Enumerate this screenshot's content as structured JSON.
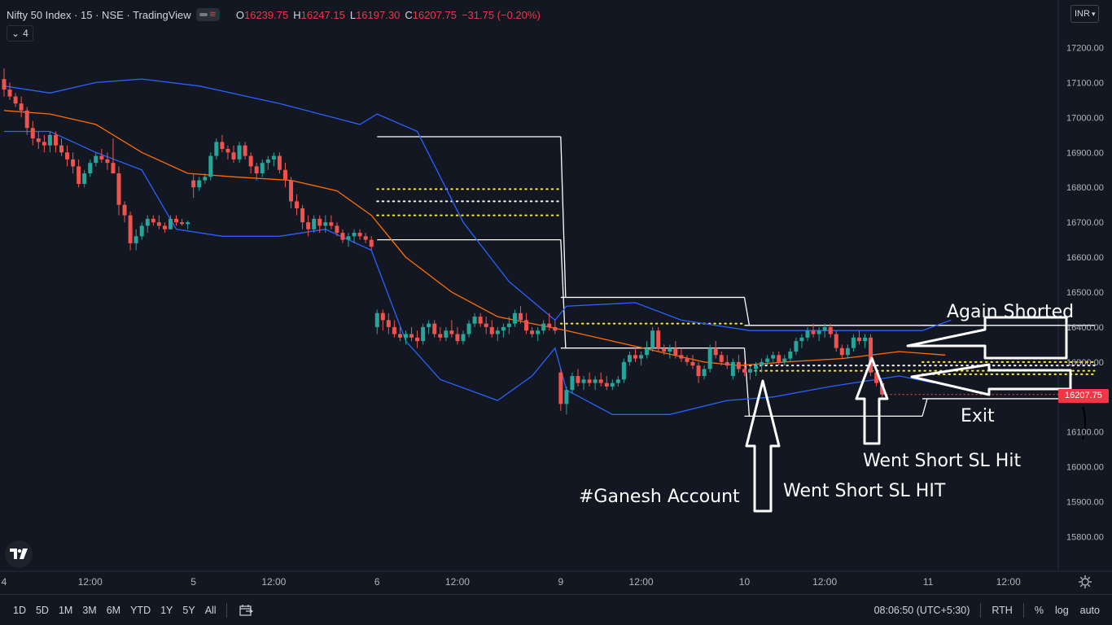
{
  "legend": {
    "title": "Nifty 50 Index · 15 · NSE · TradingView",
    "ohlc": {
      "o_label": "O",
      "o": "16239.75",
      "h_label": "H",
      "h": "16247.15",
      "l_label": "L",
      "l": "16197.30",
      "c_label": "C",
      "c": "16207.75",
      "change": "−31.75 (−0.20%)"
    },
    "collapse_count": "4"
  },
  "currency": "INR",
  "last_price": "16207.75",
  "toolbar": {
    "ranges": [
      "1D",
      "5D",
      "1M",
      "3M",
      "6M",
      "YTD",
      "1Y",
      "5Y",
      "All"
    ],
    "time": "08:06:50 (UTC+5:30)",
    "session": "RTH",
    "percent": "%",
    "log": "log",
    "auto": "auto"
  },
  "colors": {
    "background": "#131722",
    "up": "#26a69a",
    "down": "#ef5350",
    "bollinger": "#2962ff",
    "basis": "#ff6d00",
    "cpr_lines": "#ffffff",
    "pivot_dots_yellow": "#ffeb3b",
    "pivot_dots_white": "#ffffff",
    "annotation": "#ffffff"
  },
  "chart_data": {
    "type": "candlestick",
    "title": "Nifty 50 Index · 15 · NSE · TradingView",
    "y_axis": {
      "ticks": [
        "17200.00",
        "17100.00",
        "17000.00",
        "16900.00",
        "16800.00",
        "16700.00",
        "16600.00",
        "16500.00",
        "16400.00",
        "16300.00",
        "16200.00",
        "16100.00",
        "16000.00",
        "15900.00",
        "15800.00"
      ],
      "range": [
        15690,
        17340
      ]
    },
    "x_axis": {
      "ticks": [
        {
          "label": "4",
          "index": 0
        },
        {
          "label": "12:00",
          "index": 15
        },
        {
          "label": "5",
          "index": 33
        },
        {
          "label": "12:00",
          "index": 47
        },
        {
          "label": "6",
          "index": 65
        },
        {
          "label": "12:00",
          "index": 79
        },
        {
          "label": "9",
          "index": 97
        },
        {
          "label": "12:00",
          "index": 111
        },
        {
          "label": "10",
          "index": 129
        },
        {
          "label": "12:00",
          "index": 143
        },
        {
          "label": "11",
          "index": 161
        },
        {
          "label": "12:00",
          "index": 175
        }
      ]
    },
    "ohlc": [
      [
        17110,
        17140,
        17060,
        17080
      ],
      [
        17080,
        17100,
        17050,
        17060
      ],
      [
        17060,
        17070,
        17030,
        17040
      ],
      [
        17040,
        17060,
        17000,
        17020
      ],
      [
        17020,
        17030,
        16950,
        16970
      ],
      [
        16970,
        16990,
        16920,
        16940
      ],
      [
        16940,
        16960,
        16910,
        16930
      ],
      [
        16930,
        16950,
        16900,
        16920
      ],
      [
        16920,
        16960,
        16900,
        16950
      ],
      [
        16950,
        16960,
        16900,
        16920
      ],
      [
        16920,
        16940,
        16890,
        16900
      ],
      [
        16900,
        16920,
        16860,
        16880
      ],
      [
        16880,
        16900,
        16840,
        16860
      ],
      [
        16860,
        16880,
        16800,
        16810
      ],
      [
        16810,
        16850,
        16800,
        16840
      ],
      [
        16840,
        16880,
        16830,
        16870
      ],
      [
        16870,
        16900,
        16860,
        16890
      ],
      [
        16890,
        16910,
        16870,
        16880
      ],
      [
        16880,
        16900,
        16850,
        16870
      ],
      [
        16870,
        16940,
        16850,
        16840
      ],
      [
        16840,
        16860,
        16720,
        16750
      ],
      [
        16750,
        16760,
        16700,
        16720
      ],
      [
        16720,
        16730,
        16620,
        16640
      ],
      [
        16640,
        16680,
        16620,
        16660
      ],
      [
        16660,
        16700,
        16650,
        16690
      ],
      [
        16690,
        16720,
        16670,
        16710
      ],
      [
        16710,
        16720,
        16690,
        16700
      ],
      [
        16700,
        16720,
        16680,
        16690
      ],
      [
        16690,
        16700,
        16670,
        16680
      ],
      [
        16680,
        16720,
        16680,
        16710
      ],
      [
        16710,
        16720,
        16690,
        16700
      ],
      [
        16700,
        16710,
        16690,
        16695
      ],
      [
        16695,
        16705,
        16680,
        16700
      ],
      [
        16820,
        16840,
        16770,
        16800
      ],
      [
        16800,
        16830,
        16790,
        16820
      ],
      [
        16820,
        16840,
        16810,
        16830
      ],
      [
        16830,
        16900,
        16820,
        16890
      ],
      [
        16890,
        16940,
        16880,
        16930
      ],
      [
        16930,
        16950,
        16900,
        16910
      ],
      [
        16910,
        16920,
        16880,
        16900
      ],
      [
        16900,
        16920,
        16870,
        16880
      ],
      [
        16880,
        16930,
        16870,
        16920
      ],
      [
        16920,
        16930,
        16880,
        16890
      ],
      [
        16890,
        16900,
        16840,
        16860
      ],
      [
        16860,
        16870,
        16820,
        16840
      ],
      [
        16840,
        16880,
        16830,
        16870
      ],
      [
        16870,
        16890,
        16850,
        16880
      ],
      [
        16880,
        16900,
        16860,
        16890
      ],
      [
        16890,
        16900,
        16840,
        16850
      ],
      [
        16850,
        16870,
        16800,
        16820
      ],
      [
        16820,
        16830,
        16740,
        16760
      ],
      [
        16760,
        16780,
        16720,
        16740
      ],
      [
        16740,
        16750,
        16680,
        16700
      ],
      [
        16700,
        16720,
        16660,
        16680
      ],
      [
        16680,
        16720,
        16670,
        16710
      ],
      [
        16710,
        16720,
        16670,
        16690
      ],
      [
        16690,
        16720,
        16670,
        16700
      ],
      [
        16700,
        16720,
        16680,
        16690
      ],
      [
        16690,
        16700,
        16660,
        16670
      ],
      [
        16670,
        16680,
        16640,
        16650
      ],
      [
        16650,
        16670,
        16630,
        16660
      ],
      [
        16660,
        16680,
        16640,
        16670
      ],
      [
        16670,
        16680,
        16650,
        16660
      ],
      [
        16660,
        16670,
        16640,
        16650
      ],
      [
        16650,
        16660,
        16620,
        16630
      ],
      [
        16400,
        16450,
        16380,
        16440
      ],
      [
        16440,
        16450,
        16390,
        16420
      ],
      [
        16420,
        16440,
        16380,
        16400
      ],
      [
        16400,
        16420,
        16370,
        16380
      ],
      [
        16380,
        16400,
        16360,
        16370
      ],
      [
        16370,
        16390,
        16350,
        16380
      ],
      [
        16380,
        16400,
        16360,
        16370
      ],
      [
        16370,
        16390,
        16340,
        16360
      ],
      [
        16360,
        16410,
        16350,
        16400
      ],
      [
        16400,
        16420,
        16380,
        16410
      ],
      [
        16410,
        16420,
        16370,
        16380
      ],
      [
        16380,
        16400,
        16360,
        16370
      ],
      [
        16370,
        16400,
        16360,
        16390
      ],
      [
        16390,
        16420,
        16370,
        16380
      ],
      [
        16380,
        16400,
        16350,
        16360
      ],
      [
        16360,
        16390,
        16350,
        16380
      ],
      [
        16380,
        16420,
        16370,
        16410
      ],
      [
        16410,
        16440,
        16400,
        16430
      ],
      [
        16430,
        16440,
        16400,
        16410
      ],
      [
        16410,
        16430,
        16380,
        16400
      ],
      [
        16400,
        16420,
        16370,
        16380
      ],
      [
        16380,
        16400,
        16360,
        16390
      ],
      [
        16390,
        16410,
        16370,
        16400
      ],
      [
        16400,
        16430,
        16380,
        16410
      ],
      [
        16410,
        16450,
        16400,
        16440
      ],
      [
        16440,
        16460,
        16410,
        16420
      ],
      [
        16420,
        16440,
        16380,
        16390
      ],
      [
        16390,
        16400,
        16370,
        16380
      ],
      [
        16380,
        16400,
        16360,
        16390
      ],
      [
        16390,
        16420,
        16380,
        16410
      ],
      [
        16410,
        16440,
        16390,
        16400
      ],
      [
        16400,
        16420,
        16380,
        16390
      ],
      [
        16270,
        16280,
        16160,
        16180
      ],
      [
        16180,
        16230,
        16150,
        16220
      ],
      [
        16220,
        16270,
        16210,
        16260
      ],
      [
        16260,
        16280,
        16230,
        16240
      ],
      [
        16240,
        16260,
        16220,
        16250
      ],
      [
        16250,
        16270,
        16230,
        16240
      ],
      [
        16240,
        16260,
        16220,
        16250
      ],
      [
        16250,
        16270,
        16230,
        16240
      ],
      [
        16240,
        16260,
        16220,
        16230
      ],
      [
        16230,
        16250,
        16220,
        16240
      ],
      [
        16240,
        16260,
        16230,
        16250
      ],
      [
        16250,
        16310,
        16240,
        16300
      ],
      [
        16300,
        16330,
        16290,
        16320
      ],
      [
        16320,
        16340,
        16300,
        16310
      ],
      [
        16310,
        16330,
        16290,
        16320
      ],
      [
        16320,
        16360,
        16310,
        16340
      ],
      [
        16340,
        16400,
        16330,
        16390
      ],
      [
        16390,
        16400,
        16330,
        16340
      ],
      [
        16340,
        16350,
        16320,
        16330
      ],
      [
        16330,
        16350,
        16310,
        16340
      ],
      [
        16340,
        16360,
        16310,
        16320
      ],
      [
        16320,
        16340,
        16300,
        16310
      ],
      [
        16310,
        16320,
        16290,
        16300
      ],
      [
        16300,
        16320,
        16280,
        16290
      ],
      [
        16290,
        16300,
        16240,
        16260
      ],
      [
        16260,
        16290,
        16250,
        16280
      ],
      [
        16280,
        16350,
        16270,
        16340
      ],
      [
        16340,
        16360,
        16310,
        16320
      ],
      [
        16320,
        16330,
        16290,
        16300
      ],
      [
        16300,
        16320,
        16280,
        16290
      ],
      [
        16260,
        16310,
        16250,
        16300
      ],
      [
        16300,
        16320,
        16270,
        16280
      ],
      [
        16280,
        16300,
        16260,
        16270
      ],
      [
        16270,
        16290,
        16250,
        16280
      ],
      [
        16280,
        16300,
        16260,
        16290
      ],
      [
        16290,
        16310,
        16270,
        16300
      ],
      [
        16300,
        16320,
        16290,
        16310
      ],
      [
        16310,
        16330,
        16300,
        16320
      ],
      [
        16320,
        16330,
        16290,
        16300
      ],
      [
        16300,
        16320,
        16290,
        16310
      ],
      [
        16310,
        16340,
        16300,
        16330
      ],
      [
        16330,
        16370,
        16320,
        16360
      ],
      [
        16360,
        16380,
        16340,
        16370
      ],
      [
        16370,
        16400,
        16360,
        16390
      ],
      [
        16390,
        16410,
        16370,
        16380
      ],
      [
        16380,
        16400,
        16360,
        16390
      ],
      [
        16390,
        16410,
        16370,
        16400
      ],
      [
        16400,
        16410,
        16370,
        16380
      ],
      [
        16380,
        16390,
        16330,
        16340
      ],
      [
        16340,
        16350,
        16310,
        16320
      ],
      [
        16320,
        16350,
        16310,
        16340
      ],
      [
        16340,
        16380,
        16330,
        16370
      ],
      [
        16370,
        16390,
        16350,
        16360
      ],
      [
        16360,
        16380,
        16340,
        16370
      ],
      [
        16370,
        16380,
        16260,
        16270
      ],
      [
        16270,
        16280,
        16230,
        16240
      ],
      [
        16240,
        16247,
        16197,
        16207
      ]
    ],
    "overlays": {
      "bollinger_upper": [
        [
          0,
          17090
        ],
        [
          8,
          17070
        ],
        [
          16,
          17100
        ],
        [
          24,
          17110
        ],
        [
          34,
          17090
        ],
        [
          48,
          17040
        ],
        [
          62,
          16980
        ],
        [
          65,
          17010
        ],
        [
          72,
          16960
        ],
        [
          80,
          16700
        ],
        [
          88,
          16530
        ],
        [
          96,
          16420
        ],
        [
          98,
          16460
        ],
        [
          110,
          16470
        ],
        [
          118,
          16420
        ],
        [
          130,
          16390
        ],
        [
          145,
          16390
        ],
        [
          160,
          16390
        ],
        [
          165,
          16420
        ]
      ],
      "bollinger_lower": [
        [
          0,
          16960
        ],
        [
          8,
          16960
        ],
        [
          16,
          16900
        ],
        [
          24,
          16850
        ],
        [
          30,
          16680
        ],
        [
          38,
          16660
        ],
        [
          48,
          16660
        ],
        [
          56,
          16680
        ],
        [
          64,
          16620
        ],
        [
          70,
          16360
        ],
        [
          76,
          16250
        ],
        [
          86,
          16190
        ],
        [
          92,
          16260
        ],
        [
          96,
          16340
        ],
        [
          98,
          16220
        ],
        [
          106,
          16150
        ],
        [
          116,
          16150
        ],
        [
          126,
          16190
        ],
        [
          134,
          16200
        ],
        [
          144,
          16230
        ],
        [
          156,
          16260
        ],
        [
          162,
          16240
        ]
      ],
      "basis": [
        [
          0,
          17020
        ],
        [
          8,
          17010
        ],
        [
          16,
          16980
        ],
        [
          24,
          16900
        ],
        [
          32,
          16840
        ],
        [
          40,
          16830
        ],
        [
          50,
          16820
        ],
        [
          58,
          16790
        ],
        [
          64,
          16720
        ],
        [
          70,
          16600
        ],
        [
          78,
          16500
        ],
        [
          86,
          16430
        ],
        [
          92,
          16410
        ],
        [
          98,
          16390
        ],
        [
          106,
          16360
        ],
        [
          114,
          16330
        ],
        [
          122,
          16300
        ],
        [
          128,
          16290
        ],
        [
          136,
          16300
        ],
        [
          146,
          16310
        ],
        [
          156,
          16330
        ],
        [
          164,
          16320
        ]
      ],
      "cpr_levels": [
        {
          "x0": 65,
          "x1": 97,
          "price": 16945
        },
        {
          "x0": 65,
          "x1": 97,
          "price": 16650
        },
        {
          "x0": 97,
          "x1": 129,
          "price": 16485
        },
        {
          "x0": 97,
          "x1": 129,
          "price": 16340
        },
        {
          "x0": 129,
          "x1": 160,
          "price": 16405
        },
        {
          "x0": 129,
          "x1": 160,
          "price": 16145
        },
        {
          "x0": 160,
          "x1": 190,
          "price": 16405
        },
        {
          "x0": 160,
          "x1": 190,
          "price": 16195
        }
      ],
      "pivot_dots": [
        {
          "x0": 65,
          "x1": 97,
          "price": 16795,
          "color": "yellow"
        },
        {
          "x0": 65,
          "x1": 97,
          "price": 16760,
          "color": "white"
        },
        {
          "x0": 65,
          "x1": 97,
          "price": 16720,
          "color": "yellow"
        },
        {
          "x0": 97,
          "x1": 129,
          "price": 16410,
          "color": "yellow"
        },
        {
          "x0": 129,
          "x1": 190,
          "price": 16290,
          "color": "white"
        },
        {
          "x0": 129,
          "x1": 190,
          "price": 16275,
          "color": "yellow"
        },
        {
          "x0": 160,
          "x1": 190,
          "price": 16300,
          "color": "yellow"
        },
        {
          "x0": 160,
          "x1": 190,
          "price": 16265,
          "color": "yellow"
        }
      ]
    },
    "annotations": [
      {
        "text": "Again Shorted"
      },
      {
        "text": "Exit"
      },
      {
        "text": "Went Short SL Hit"
      },
      {
        "text": "Went Short SL HIT"
      },
      {
        "text": "#Ganesh Account"
      }
    ]
  }
}
